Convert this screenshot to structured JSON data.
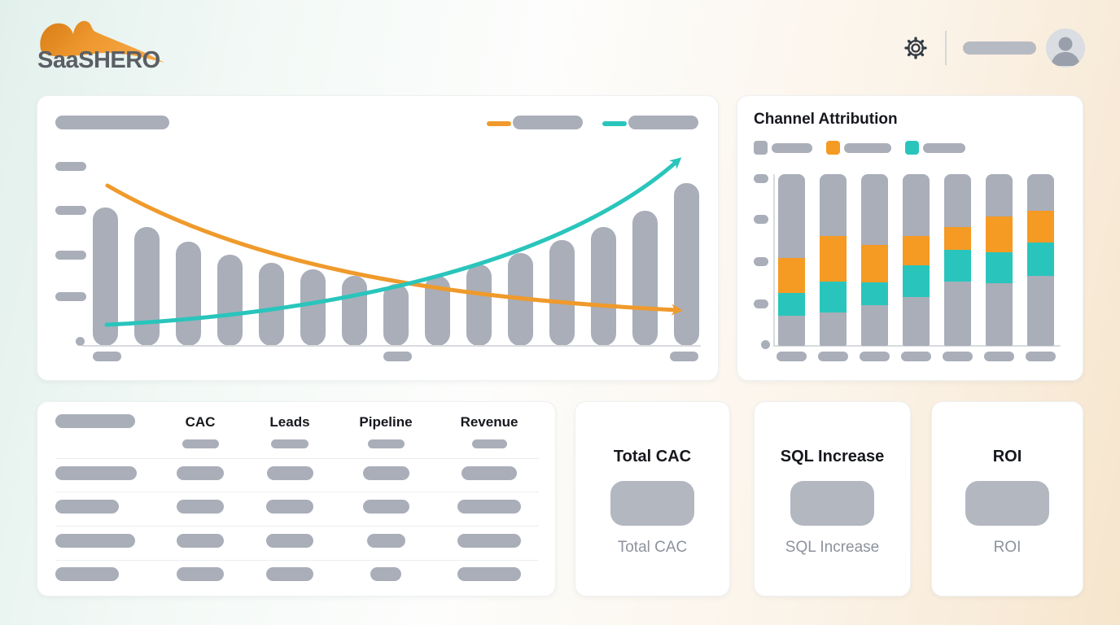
{
  "brand": {
    "logo_text": "SaaSHERO"
  },
  "header": {
    "gear_icon": "settings-gear",
    "user_pill_placeholder": "",
    "avatar_icon": "user-avatar"
  },
  "colors": {
    "orange": "#F59A23",
    "teal": "#29C5BC",
    "placeholder_gray": "#A9AEB9",
    "ink": "#16181D",
    "muted_label": "#8D929B",
    "bg_mint": "#E2F0EC",
    "bg_peach": "#F6E5CD"
  },
  "channel_chart": {
    "title": "Channel Attribution"
  },
  "table": {
    "headers": [
      "",
      "CAC",
      "Leads",
      "Pipeline",
      "Revenue"
    ],
    "header_label_placeholder_w": 98,
    "subheader_pill_widths": [
      45,
      46,
      45,
      43
    ],
    "rows": [
      {
        "label_w": 100,
        "cell_widths": [
          58,
          57,
          57,
          68
        ]
      },
      {
        "label_w": 78,
        "cell_widths": [
          58,
          58,
          57,
          78
        ]
      },
      {
        "label_w": 98,
        "cell_widths": [
          58,
          58,
          47,
          78
        ]
      },
      {
        "label_w": 78,
        "cell_widths": [
          58,
          58,
          38,
          78
        ]
      }
    ]
  },
  "kpis": [
    {
      "title": "Total CAC",
      "value_placeholder": "",
      "label": "Total CAC"
    },
    {
      "title": "SQL Increase",
      "value_placeholder": "",
      "label": "SQL Increase"
    },
    {
      "title": "ROI",
      "value_placeholder": "",
      "label": "ROI"
    }
  ],
  "chart_data": [
    {
      "id": "performance-trend",
      "type": "bar",
      "title": "",
      "xlabel": "",
      "ylabel": "",
      "categories": [
        "",
        "",
        "",
        "",
        "",
        "",
        "",
        "",
        "",
        "",
        "",
        "",
        "",
        "",
        ""
      ],
      "values": [
        85,
        73,
        64,
        56,
        51,
        47,
        43,
        38,
        43,
        50,
        57,
        65,
        73,
        83,
        100
      ],
      "ylim": [
        0,
        100
      ],
      "grid": false,
      "legend_position": "top-right",
      "legend_entries_redacted": 2,
      "note": "wireframe placeholder chart: title, legend labels, axis tick labels are redacted gray pills; values estimated from bar heights",
      "overlays": [
        {
          "type": "line",
          "name": "declining-curve",
          "color": "#ED9630",
          "shape": "exponential-decay",
          "arrow_end": true
        },
        {
          "type": "line",
          "name": "rising-curve",
          "color": "#29C5BC",
          "shape": "exponential-growth",
          "arrow_end": true
        }
      ]
    },
    {
      "id": "channel-attribution",
      "type": "bar",
      "stacked": true,
      "title": "Channel Attribution",
      "categories": [
        "",
        "",
        "",
        "",
        "",
        "",
        ""
      ],
      "series": [
        {
          "name": "segment-top-gray",
          "color": "#A9AEB9",
          "values": [
            48.6,
            36.2,
            41.4,
            36.2,
            31.0,
            24.8,
            21.4
          ]
        },
        {
          "name": "segment-orange",
          "color": "#F59A23",
          "values": [
            20.5,
            26.2,
            21.4,
            16.7,
            13.3,
            20.5,
            18.6
          ]
        },
        {
          "name": "segment-teal",
          "color": "#29C5BC",
          "values": [
            13.3,
            18.1,
            13.4,
            18.6,
            18.1,
            18.1,
            19.5
          ]
        },
        {
          "name": "segment-bottom-gray",
          "color": "#A9AEB9",
          "values": [
            17.6,
            19.5,
            23.8,
            28.5,
            37.6,
            36.6,
            40.5
          ]
        }
      ],
      "ylim": [
        0,
        100
      ],
      "legend_position": "top-left",
      "legend_entries_redacted": 3,
      "note": "all bars full height; legend and axis labels are redacted gray pills; segment splits estimated in percent"
    }
  ]
}
